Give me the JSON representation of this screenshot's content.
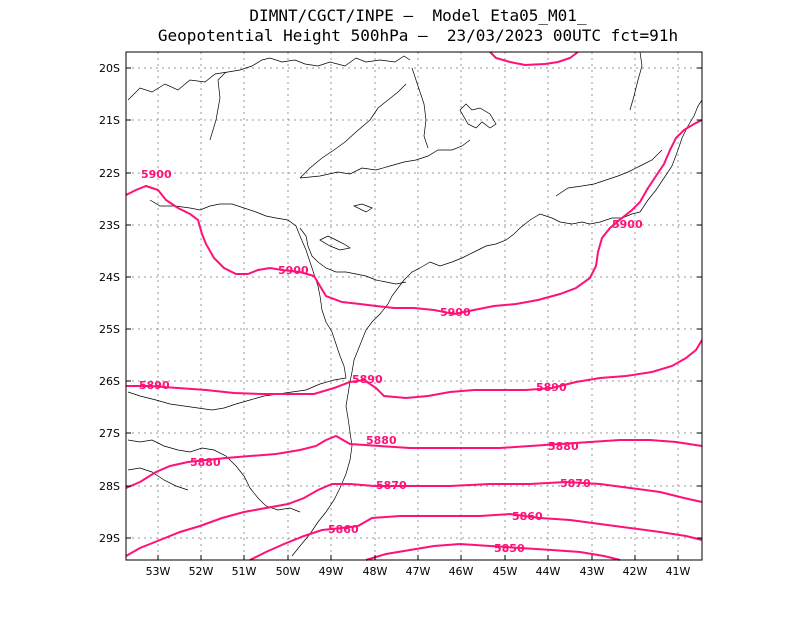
{
  "title_line1": "DIMNT/CGCT/INPE –  Model Eta05_M01_",
  "title_line2": "Geopotential Height 500hPa –  23/03/2023 00UTC fct=91h",
  "colors": {
    "contour": "#ff1177",
    "coast": "#000000",
    "grid": "#999999"
  },
  "lat_ticks": [
    "20S",
    "21S",
    "22S",
    "23S",
    "24S",
    "25S",
    "26S",
    "27S",
    "28S",
    "29S"
  ],
  "lon_ticks": [
    "53W",
    "52W",
    "51W",
    "50W",
    "49W",
    "48W",
    "47W",
    "46W",
    "45W",
    "44W",
    "43W",
    "42W",
    "41W"
  ],
  "contour_labels": [
    {
      "text": "5900"
    },
    {
      "text": "5900"
    },
    {
      "text": "5900"
    },
    {
      "text": "5900"
    },
    {
      "text": "5890"
    },
    {
      "text": "5890"
    },
    {
      "text": "5890"
    },
    {
      "text": "5880"
    },
    {
      "text": "5880"
    },
    {
      "text": "5880"
    },
    {
      "text": "5870"
    },
    {
      "text": "5870"
    },
    {
      "text": "5860"
    },
    {
      "text": "5860"
    },
    {
      "text": "5850"
    }
  ]
}
